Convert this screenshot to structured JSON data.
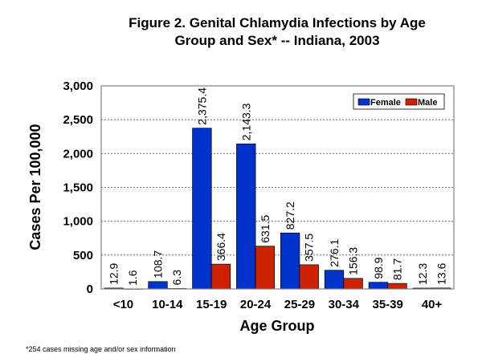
{
  "chart_data": {
    "type": "bar",
    "title_lines": [
      "Figure 2.  Genital Chlamydia Infections by Age",
      "Group and Sex* -- Indiana, 2003"
    ],
    "xlabel": "Age Group",
    "ylabel": "Cases Per 100,000",
    "categories": [
      "<10",
      "10-14",
      "15-19",
      "20-24",
      "25-29",
      "30-34",
      "35-39",
      "40+"
    ],
    "series": [
      {
        "name": "Female",
        "color": "#0033CC",
        "values": [
          12.9,
          108.7,
          2375.4,
          2143.3,
          827.2,
          276.1,
          98.9,
          12.3
        ],
        "labels": [
          "12.9",
          "108.7",
          "2,375.4",
          "2,143.3",
          "827.2",
          "276.1",
          "98.9",
          "12.3"
        ]
      },
      {
        "name": "Male",
        "color": "#CC2200",
        "values": [
          1.6,
          6.3,
          366.4,
          631.5,
          357.5,
          156.3,
          81.7,
          13.6
        ],
        "labels": [
          "1.6",
          "6.3",
          "366.4",
          "631.5",
          "357.5",
          "156.3",
          "81.7",
          "13.6"
        ]
      }
    ],
    "ylim": [
      0,
      3000
    ],
    "yticks": [
      0,
      500,
      1000,
      1500,
      2000,
      2500,
      3000
    ],
    "ytick_labels": [
      "0",
      "500",
      "1,000",
      "1,500",
      "2,000",
      "2,500",
      "3,000"
    ],
    "grid": "horizontal-dashed",
    "legend_position": "top-right",
    "footnote": "*254 cases missing age and/or sex information"
  }
}
